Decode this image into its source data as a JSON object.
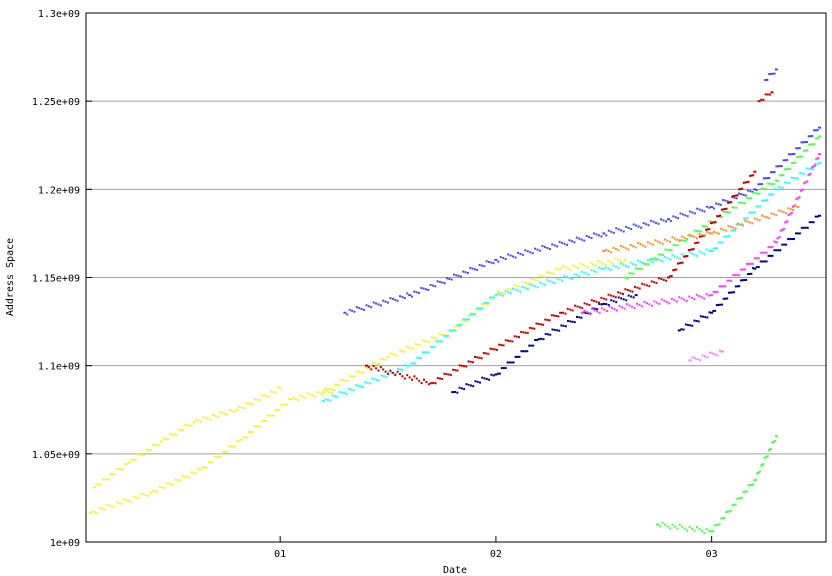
{
  "chart_data": {
    "type": "scatter",
    "title": "",
    "xlabel": "Date",
    "ylabel": "Address Space",
    "xlim": [
      0.1,
      3.53
    ],
    "ylim": [
      1000000000.0,
      1300000000.0
    ],
    "grid": "horizontal",
    "x_ticks": [
      {
        "value": 1,
        "label": "01"
      },
      {
        "value": 2,
        "label": "02"
      },
      {
        "value": 3,
        "label": "03"
      }
    ],
    "y_ticks": [
      {
        "value": 1000000000.0,
        "label": "1e+09"
      },
      {
        "value": 1050000000.0,
        "label": "1.05e+09"
      },
      {
        "value": 1100000000.0,
        "label": "1.1e+09"
      },
      {
        "value": 1150000000.0,
        "label": "1.15e+09"
      },
      {
        "value": 1200000000.0,
        "label": "1.2e+09"
      },
      {
        "value": 1250000000.0,
        "label": "1.25e+09"
      },
      {
        "value": 1300000000.0,
        "label": "1.3e+09"
      }
    ],
    "series": [
      {
        "color": "#f4f43a",
        "points": [
          [
            0.12,
            1016500000.0
          ],
          [
            0.4,
            1028000000.0
          ],
          [
            0.63,
            1041000000.0
          ],
          [
            0.82,
            1058000000.0
          ],
          [
            1.05,
            1081000000.0
          ],
          [
            1.25,
            1086000000.0
          ]
        ]
      },
      {
        "color": "#f4f43a",
        "points": [
          [
            0.14,
            1031000000.0
          ],
          [
            0.3,
            1045000000.0
          ],
          [
            0.45,
            1057000000.0
          ],
          [
            0.6,
            1068000000.0
          ],
          [
            0.8,
            1075000000.0
          ],
          [
            1.0,
            1087000000.0
          ]
        ]
      },
      {
        "color": "#f4f43a",
        "points": [
          [
            1.2,
            1085000000.0
          ],
          [
            1.5,
            1105000000.0
          ],
          [
            1.8,
            1120000000.0
          ],
          [
            2.0,
            1140000000.0
          ],
          [
            2.3,
            1155000000.0
          ],
          [
            2.6,
            1160000000.0
          ]
        ]
      },
      {
        "color": "#4848ff",
        "points": [
          [
            1.3,
            1130000000.0
          ],
          [
            1.6,
            1140000000.0
          ],
          [
            2.0,
            1160000000.0
          ],
          [
            2.5,
            1175000000.0
          ],
          [
            2.8,
            1183000000.0
          ],
          [
            3.0,
            1190000000.0
          ],
          [
            3.2,
            1200000000.0
          ],
          [
            3.5,
            1235000000.0
          ]
        ]
      },
      {
        "color": "#4848ff",
        "points": [
          [
            3.25,
            1262000000.0
          ],
          [
            3.3,
            1268000000.0
          ]
        ]
      },
      {
        "color": "#000080",
        "points": [
          [
            1.8,
            1085000000.0
          ],
          [
            2.0,
            1095000000.0
          ],
          [
            2.2,
            1115000000.0
          ],
          [
            2.5,
            1135000000.0
          ],
          [
            2.65,
            1140000000.0
          ]
        ]
      },
      {
        "color": "#000080",
        "points": [
          [
            2.85,
            1120000000.0
          ],
          [
            3.0,
            1130000000.0
          ],
          [
            3.2,
            1155000000.0
          ],
          [
            3.5,
            1185000000.0
          ]
        ]
      },
      {
        "color": "#30ffff",
        "points": [
          [
            1.2,
            1080000000.0
          ],
          [
            1.6,
            1100000000.0
          ],
          [
            2.0,
            1140000000.0
          ],
          [
            2.5,
            1155000000.0
          ],
          [
            3.0,
            1165000000.0
          ],
          [
            3.3,
            1200000000.0
          ],
          [
            3.5,
            1215000000.0
          ]
        ]
      },
      {
        "color": "#ff40ff",
        "points": [
          [
            2.4,
            1130000000.0
          ],
          [
            3.0,
            1140000000.0
          ],
          [
            3.3,
            1170000000.0
          ],
          [
            3.5,
            1220000000.0
          ]
        ]
      },
      {
        "color": "#ff80ff",
        "points": [
          [
            2.9,
            1103000000.0
          ],
          [
            3.05,
            1108000000.0
          ]
        ]
      },
      {
        "color": "#50ff50",
        "points": [
          [
            2.6,
            1150000000.0
          ],
          [
            3.3,
            1205000000.0
          ],
          [
            3.5,
            1230000000.0
          ]
        ]
      },
      {
        "color": "#50ff50",
        "points": [
          [
            2.75,
            1010000000.0
          ],
          [
            3.0,
            1006000000.0
          ],
          [
            3.2,
            1035000000.0
          ],
          [
            3.3,
            1060000000.0
          ]
        ]
      },
      {
        "color": "#c00000",
        "points": [
          [
            1.4,
            1100000000.0
          ],
          [
            1.7,
            1090000000.0
          ],
          [
            2.3,
            1130000000.0
          ],
          [
            2.8,
            1150000000.0
          ],
          [
            3.2,
            1210000000.0
          ]
        ]
      },
      {
        "color": "#c00000",
        "points": [
          [
            3.22,
            1250000000.0
          ],
          [
            3.28,
            1255000000.0
          ]
        ]
      },
      {
        "color": "#ff9030",
        "points": [
          [
            2.5,
            1165000000.0
          ],
          [
            3.0,
            1175000000.0
          ],
          [
            3.4,
            1190000000.0
          ]
        ]
      }
    ]
  }
}
